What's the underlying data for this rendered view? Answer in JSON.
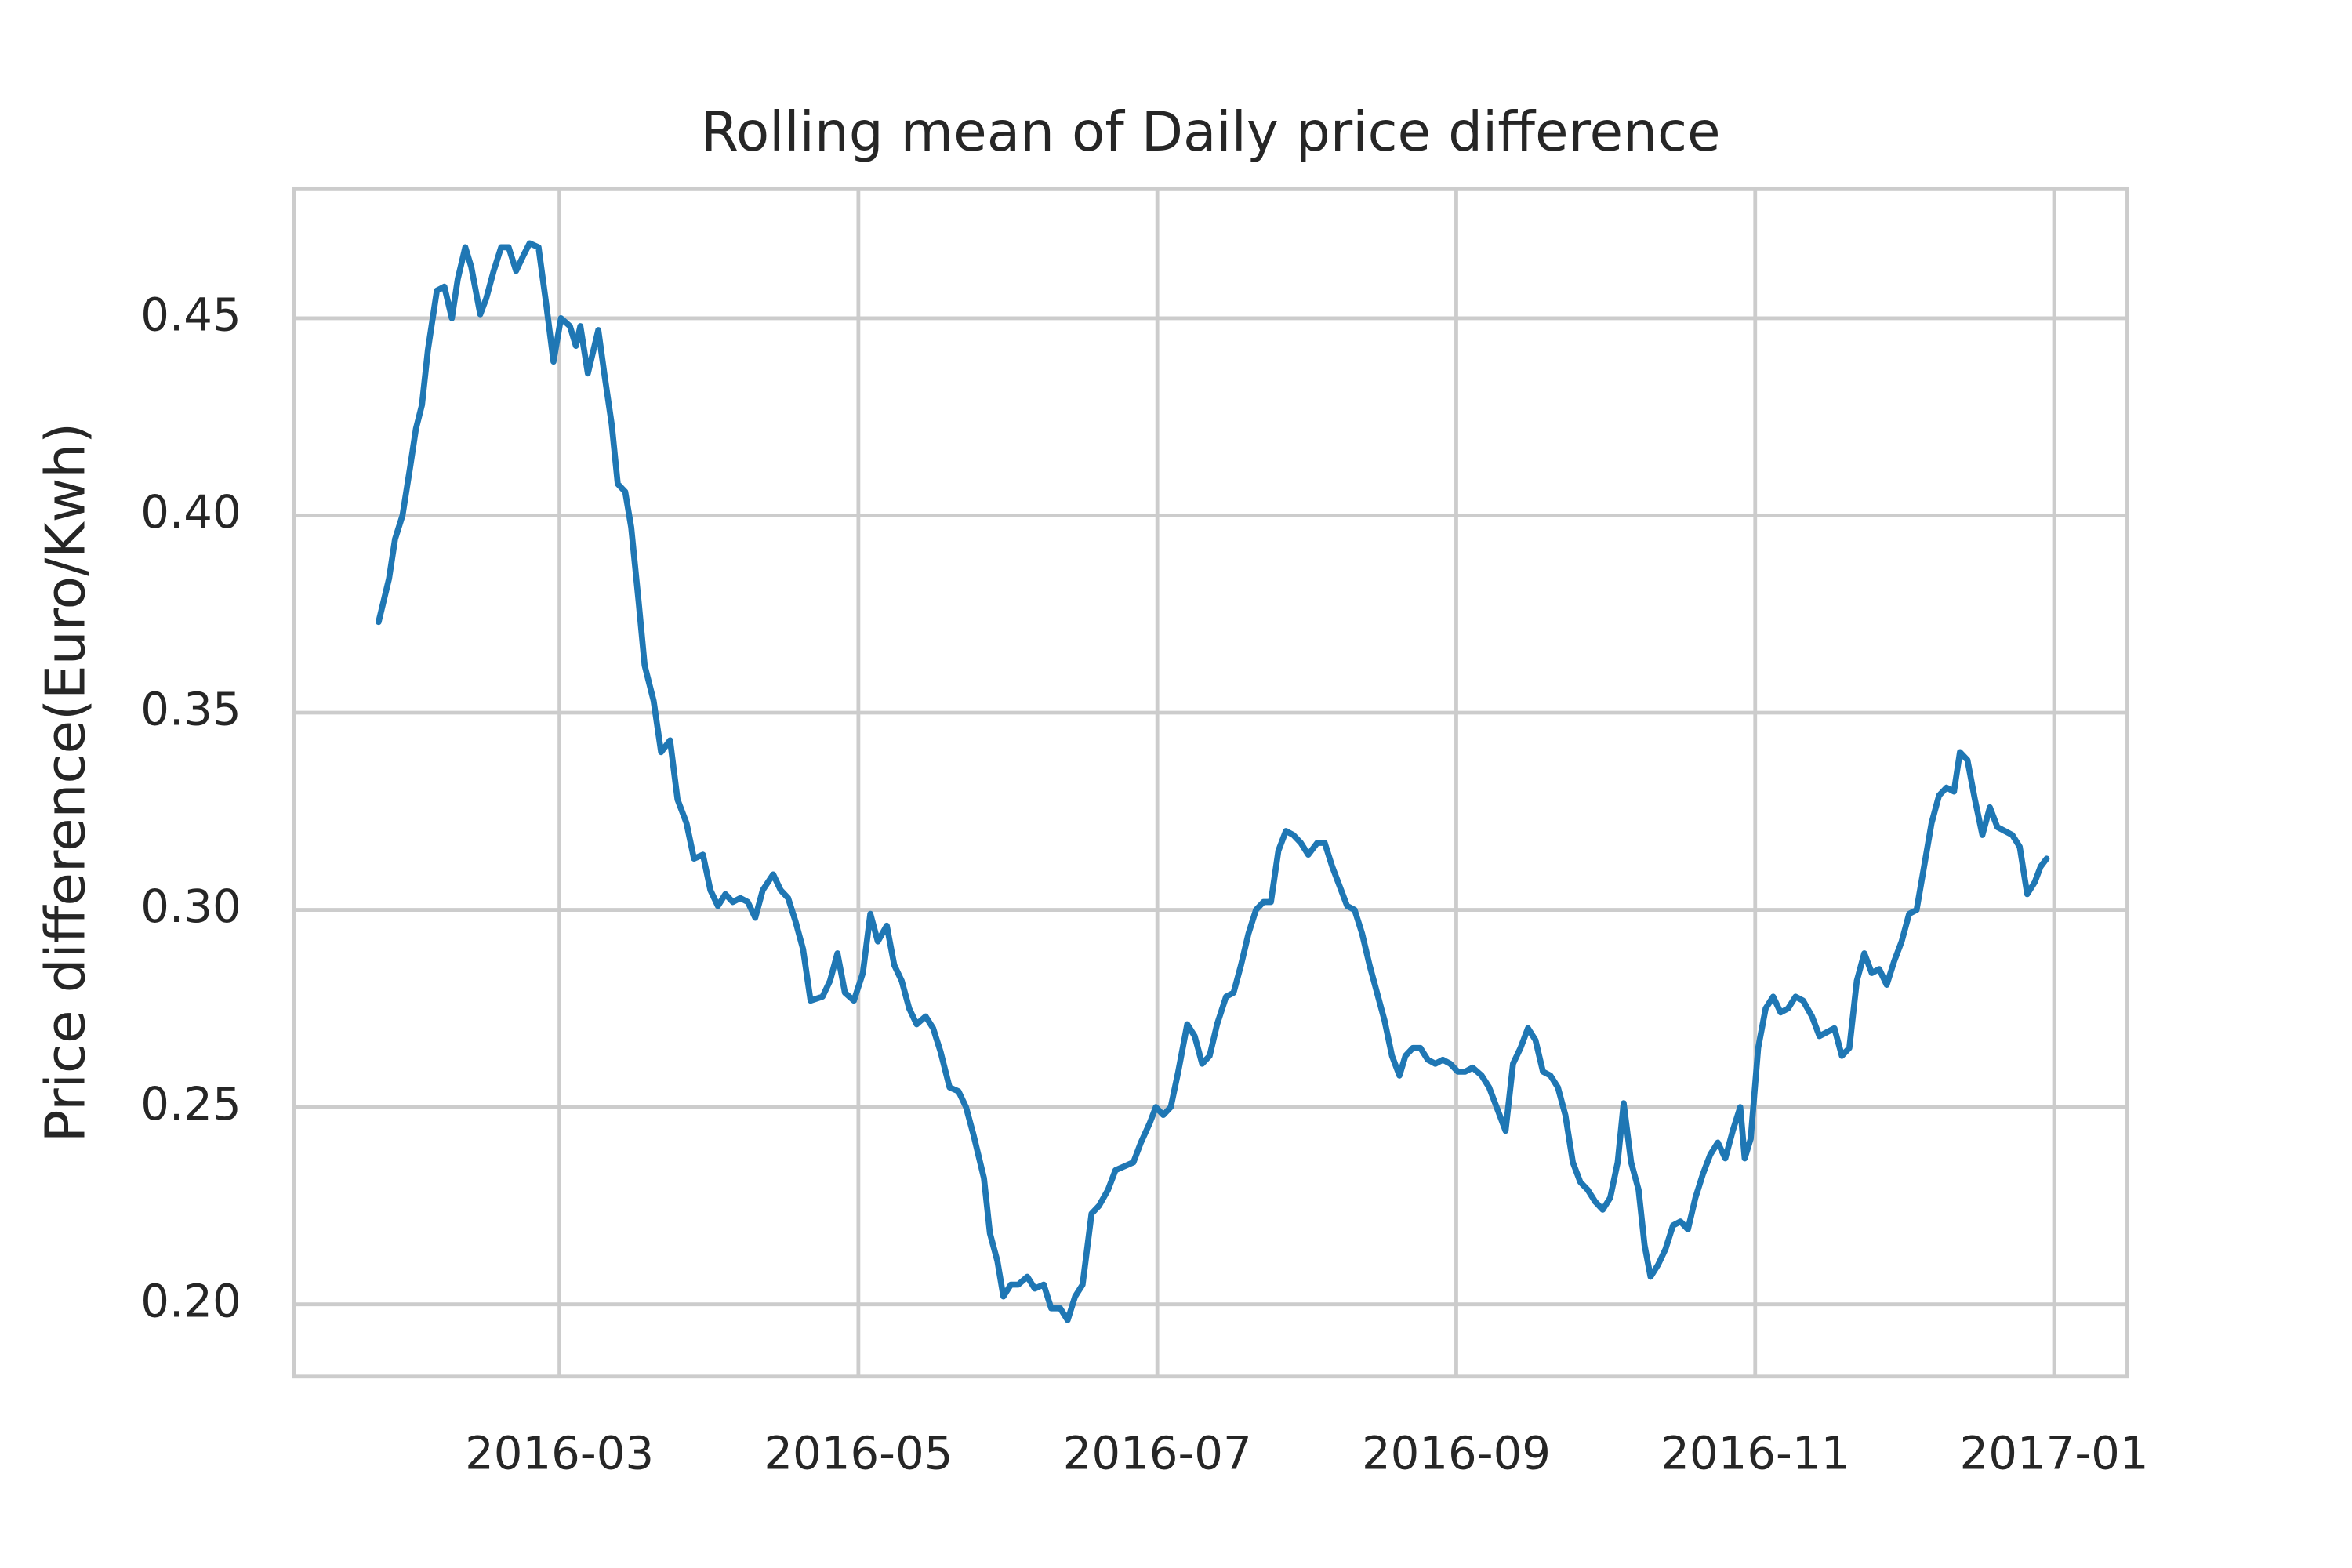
{
  "chart_data": {
    "type": "line",
    "title": "Rolling mean of Daily price difference",
    "y_label": "Price difference(Euro/Kwh)",
    "color": "#1f77b4",
    "grid": true,
    "x": [
      0.79,
      0.86,
      0.9,
      0.95,
      1.0,
      1.04,
      1.08,
      1.12,
      1.18,
      1.23,
      1.28,
      1.32,
      1.37,
      1.41,
      1.47,
      1.51,
      1.56,
      1.61,
      1.66,
      1.71,
      1.76,
      1.8,
      1.86,
      1.91,
      1.96,
      2.01,
      2.07,
      2.11,
      2.14,
      2.19,
      2.26,
      2.3,
      2.35,
      2.39,
      2.44,
      2.48,
      2.53,
      2.57,
      2.63,
      2.68,
      2.74,
      2.79,
      2.85,
      2.9,
      2.96,
      3.01,
      3.06,
      3.11,
      3.16,
      3.21,
      3.26,
      3.31,
      3.36,
      3.43,
      3.48,
      3.53,
      3.58,
      3.63,
      3.68,
      3.76,
      3.81,
      3.86,
      3.91,
      3.97,
      4.03,
      4.08,
      4.13,
      4.19,
      4.24,
      4.29,
      4.34,
      4.39,
      4.45,
      4.5,
      4.55,
      4.61,
      4.67,
      4.72,
      4.77,
      4.84,
      4.88,
      4.93,
      4.97,
      5.02,
      5.07,
      5.13,
      5.18,
      5.24,
      5.29,
      5.35,
      5.4,
      5.45,
      5.5,
      5.56,
      5.61,
      5.67,
      5.72,
      5.78,
      5.84,
      5.89,
      5.95,
      5.99,
      6.04,
      6.09,
      6.14,
      6.2,
      6.25,
      6.3,
      6.35,
      6.4,
      6.46,
      6.51,
      6.56,
      6.61,
      6.66,
      6.71,
      6.76,
      6.81,
      6.86,
      6.91,
      6.96,
      7.01,
      7.07,
      7.12,
      7.17,
      7.22,
      7.27,
      7.32,
      7.37,
      7.42,
      7.47,
      7.52,
      7.57,
      7.62,
      7.66,
      7.71,
      7.76,
      7.81,
      7.86,
      7.91,
      7.96,
      8.01,
      8.06,
      8.11,
      8.17,
      8.22,
      8.27,
      8.33,
      8.38,
      8.43,
      8.48,
      8.53,
      8.58,
      8.63,
      8.68,
      8.73,
      8.78,
      8.83,
      8.88,
      8.93,
      8.98,
      9.03,
      9.08,
      9.12,
      9.17,
      9.22,
      9.26,
      9.3,
      9.35,
      9.4,
      9.45,
      9.5,
      9.55,
      9.6,
      9.65,
      9.7,
      9.75,
      9.8,
      9.85,
      9.9,
      9.93,
      9.97,
      10.02,
      10.07,
      10.12,
      10.17,
      10.22,
      10.27,
      10.32,
      10.38,
      10.43,
      10.48,
      10.53,
      10.58,
      10.63,
      10.68,
      10.73,
      10.78,
      10.83,
      10.88,
      10.93,
      10.98,
      11.03,
      11.08,
      11.13,
      11.18,
      11.23,
      11.28,
      11.33,
      11.37,
      11.42,
      11.47,
      11.52,
      11.57,
      11.62,
      11.67,
      11.72,
      11.77,
      11.82,
      11.87,
      11.91,
      11.95
    ],
    "values": [
      0.373,
      0.384,
      0.394,
      0.4,
      0.412,
      0.422,
      0.428,
      0.442,
      0.457,
      0.458,
      0.45,
      0.46,
      0.468,
      0.463,
      0.451,
      0.455,
      0.462,
      0.468,
      0.468,
      0.462,
      0.466,
      0.469,
      0.468,
      0.454,
      0.439,
      0.45,
      0.448,
      0.443,
      0.448,
      0.436,
      0.447,
      0.436,
      0.423,
      0.408,
      0.406,
      0.397,
      0.378,
      0.362,
      0.353,
      0.34,
      0.343,
      0.328,
      0.322,
      0.313,
      0.314,
      0.305,
      0.301,
      0.304,
      0.302,
      0.303,
      0.302,
      0.298,
      0.305,
      0.309,
      0.305,
      0.303,
      0.297,
      0.29,
      0.277,
      0.278,
      0.282,
      0.289,
      0.279,
      0.277,
      0.284,
      0.299,
      0.292,
      0.296,
      0.286,
      0.282,
      0.275,
      0.271,
      0.273,
      0.27,
      0.264,
      0.255,
      0.254,
      0.25,
      0.243,
      0.232,
      0.218,
      0.211,
      0.202,
      0.205,
      0.205,
      0.207,
      0.204,
      0.205,
      0.199,
      0.199,
      0.196,
      0.202,
      0.205,
      0.223,
      0.225,
      0.229,
      0.234,
      0.235,
      0.236,
      0.241,
      0.246,
      0.25,
      0.248,
      0.25,
      0.259,
      0.271,
      0.268,
      0.261,
      0.263,
      0.271,
      0.278,
      0.279,
      0.286,
      0.294,
      0.3,
      0.302,
      0.302,
      0.315,
      0.32,
      0.319,
      0.317,
      0.314,
      0.317,
      0.317,
      0.311,
      0.306,
      0.301,
      0.3,
      0.294,
      0.286,
      0.279,
      0.272,
      0.263,
      0.258,
      0.263,
      0.265,
      0.265,
      0.262,
      0.261,
      0.262,
      0.261,
      0.259,
      0.259,
      0.26,
      0.258,
      0.255,
      0.25,
      0.244,
      0.261,
      0.265,
      0.27,
      0.267,
      0.259,
      0.258,
      0.255,
      0.248,
      0.236,
      0.231,
      0.229,
      0.226,
      0.224,
      0.227,
      0.236,
      0.251,
      0.236,
      0.229,
      0.215,
      0.207,
      0.21,
      0.214,
      0.22,
      0.221,
      0.219,
      0.227,
      0.233,
      0.238,
      0.241,
      0.237,
      0.244,
      0.25,
      0.237,
      0.242,
      0.265,
      0.275,
      0.278,
      0.274,
      0.275,
      0.278,
      0.277,
      0.273,
      0.268,
      0.269,
      0.27,
      0.263,
      0.265,
      0.282,
      0.289,
      0.284,
      0.285,
      0.281,
      0.287,
      0.292,
      0.299,
      0.3,
      0.311,
      0.322,
      0.329,
      0.331,
      0.33,
      0.34,
      0.338,
      0.328,
      0.319,
      0.326,
      0.321,
      0.32,
      0.319,
      0.316,
      0.304,
      0.307,
      0.311,
      0.313
    ],
    "xlim": [
      0.224,
      12.49
    ],
    "ylim": [
      0.1817,
      0.4829
    ],
    "xticks": [
      {
        "value": 2,
        "label": "2016-03"
      },
      {
        "value": 4,
        "label": "2016-05"
      },
      {
        "value": 6,
        "label": "2016-07"
      },
      {
        "value": 8,
        "label": "2016-09"
      },
      {
        "value": 10,
        "label": "2016-11"
      },
      {
        "value": 12,
        "label": "2017-01"
      }
    ],
    "yticks": [
      {
        "value": 0.2,
        "label": "0.20"
      },
      0.25,
      {
        "value": 0.3,
        "label": "0.30"
      },
      0.35,
      {
        "value": 0.4,
        "label": "0.40"
      },
      0.45
    ]
  }
}
